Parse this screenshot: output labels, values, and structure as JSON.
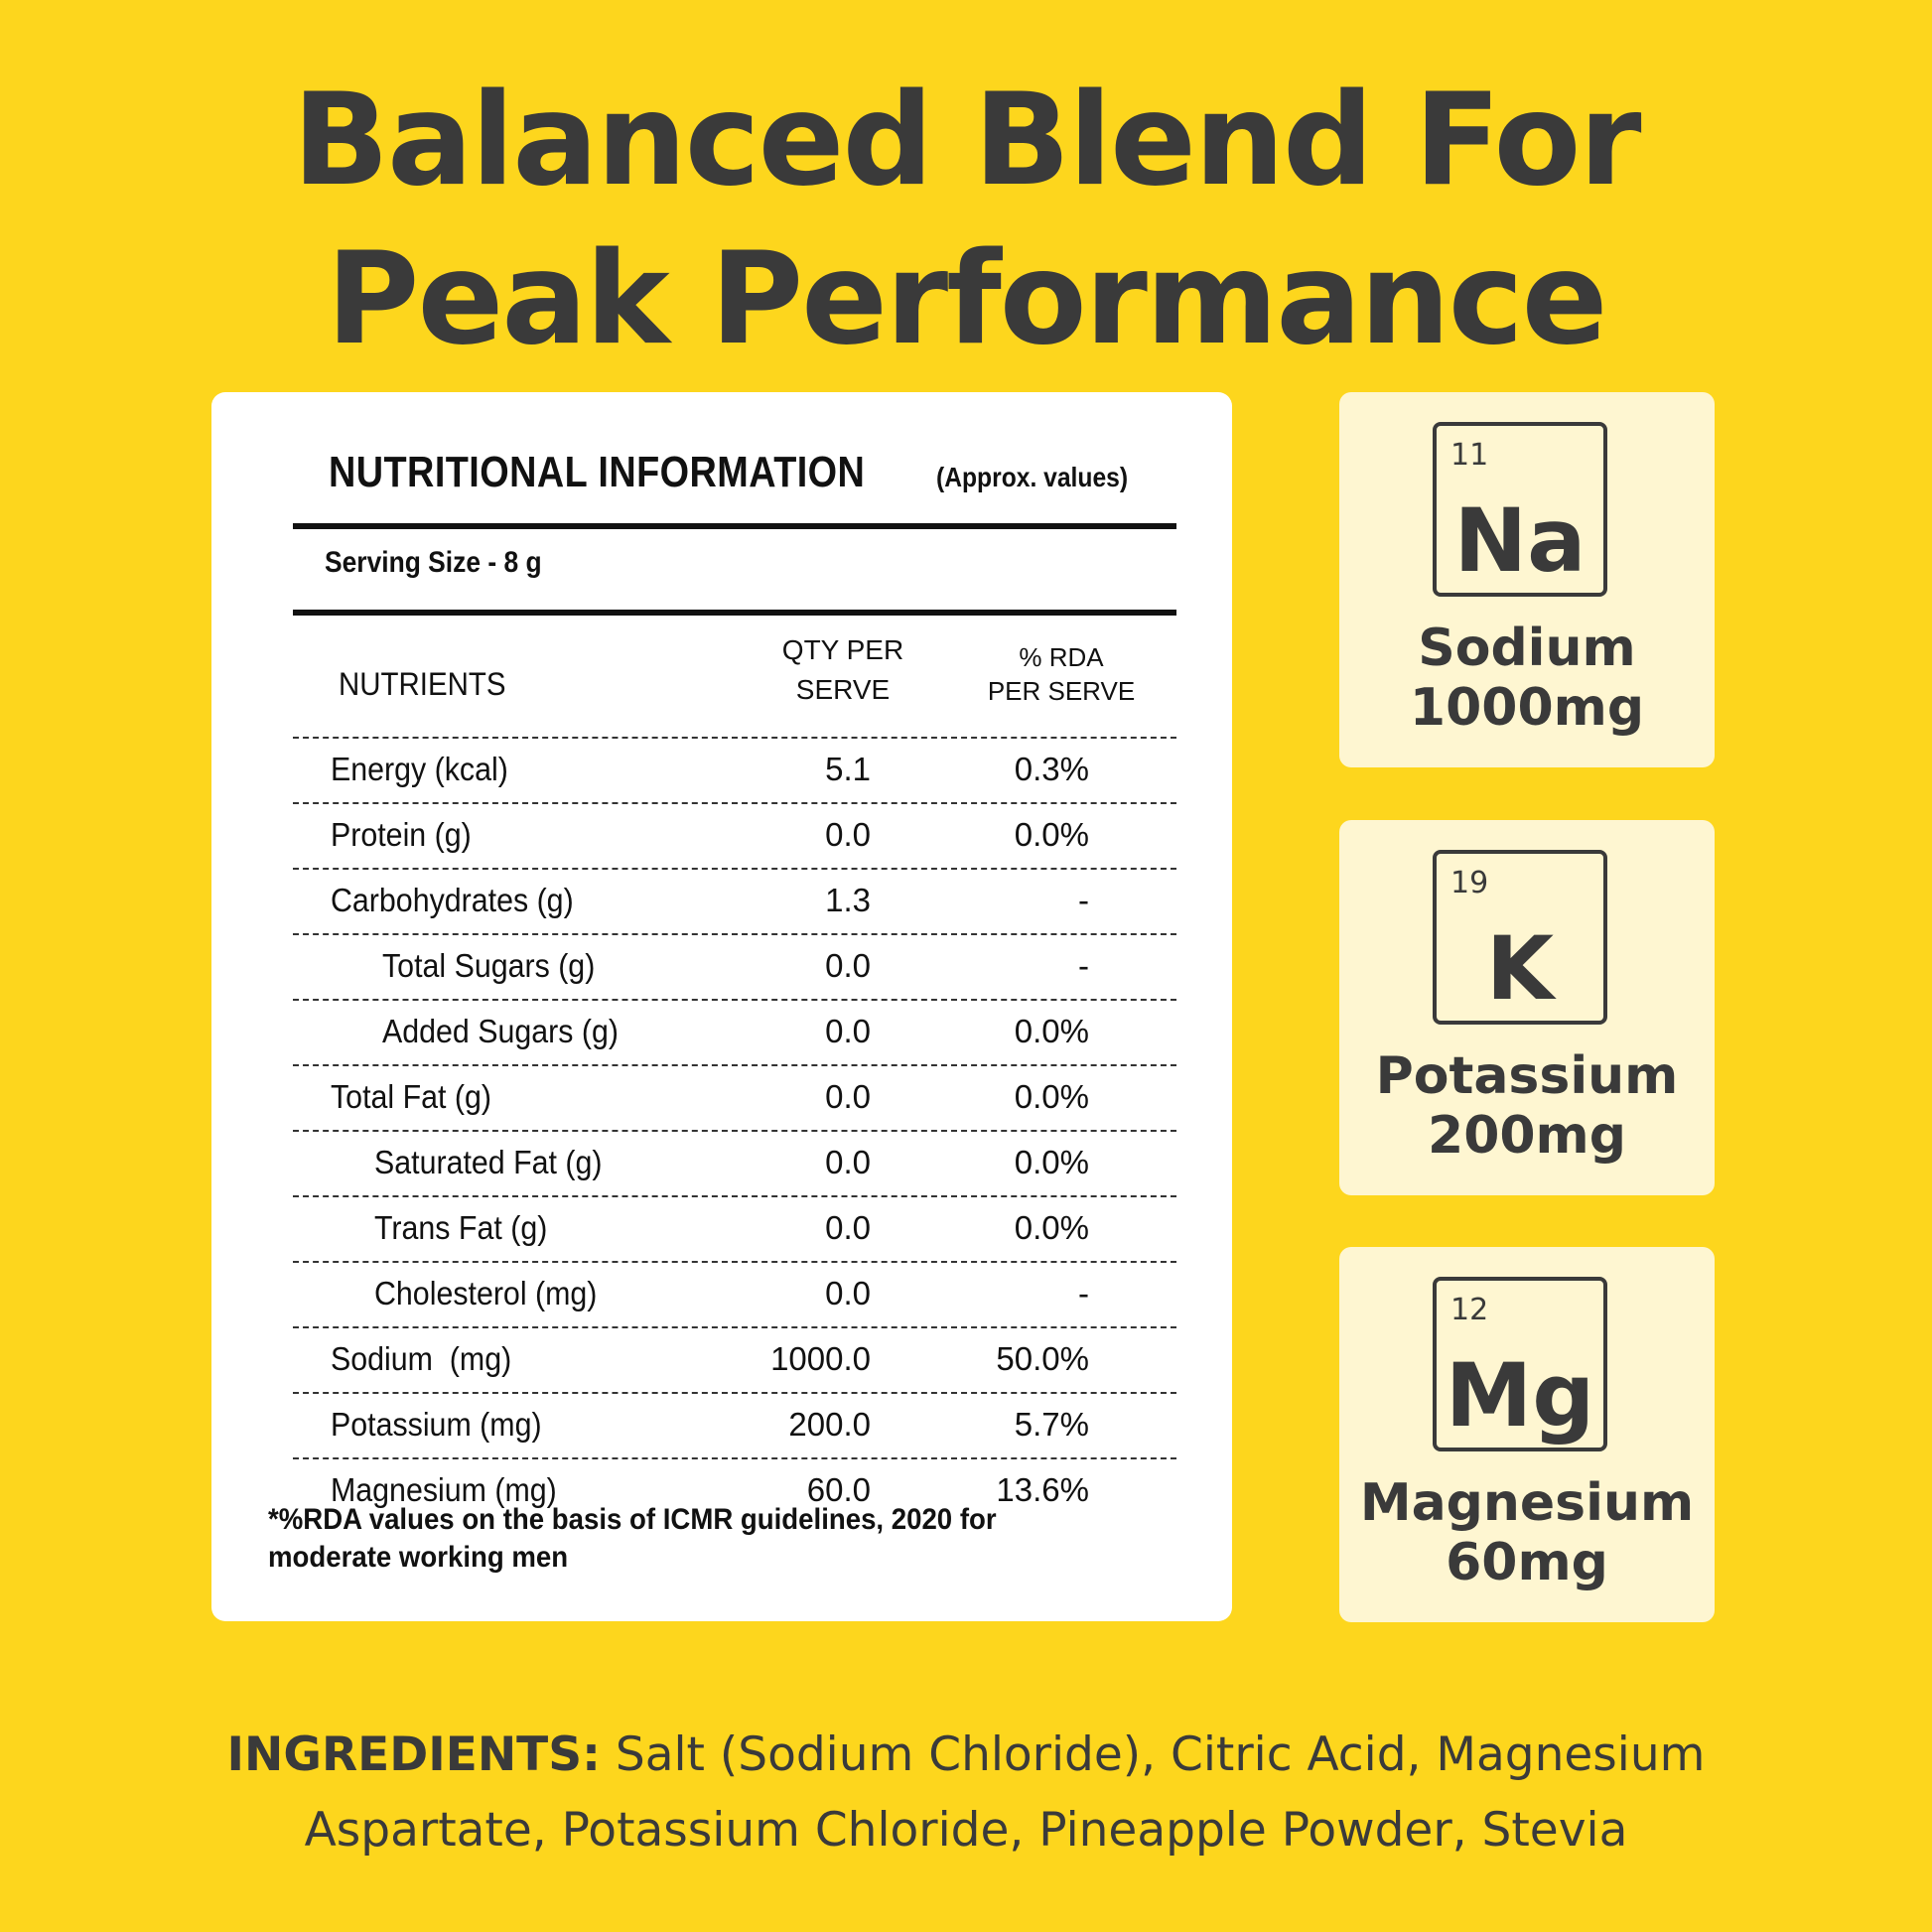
{
  "headline": {
    "line1": "Balanced Blend For",
    "line2": "Peak Performance"
  },
  "nutrition": {
    "title": "NUTRITIONAL INFORMATION",
    "subtitle": "(Approx. values)",
    "serving": "Serving Size - 8 g",
    "headers": {
      "nutrients": "NUTRIENTS",
      "qty_line1": "QTY PER",
      "qty_line2": "SERVE",
      "rda_line1": "% RDA",
      "rda_line2": "PER SERVE"
    },
    "rows": [
      {
        "name": "Energy (kcal)",
        "qty": "5.1",
        "rda": "0.3%"
      },
      {
        "name": "Protein (g)",
        "qty": "0.0",
        "rda": "0.0%"
      },
      {
        "name": "Carbohydrates (g)",
        "qty": "1.3",
        "rda": "-"
      },
      {
        "name": "Total Sugars (g)",
        "qty": "0.0",
        "rda": "-"
      },
      {
        "name": "Added Sugars (g)",
        "qty": "0.0",
        "rda": "0.0%"
      },
      {
        "name": "Total Fat (g)",
        "qty": "0.0",
        "rda": "0.0%"
      },
      {
        "name": "Saturated Fat (g)",
        "qty": "0.0",
        "rda": "0.0%"
      },
      {
        "name": "Trans Fat (g)",
        "qty": "0.0",
        "rda": "0.0%"
      },
      {
        "name": "Cholesterol (mg)",
        "qty": "0.0",
        "rda": "-"
      },
      {
        "name": "Sodium  (mg)",
        "qty": "1000.0",
        "rda": "50.0%"
      },
      {
        "name": "Potassium (mg)",
        "qty": "200.0",
        "rda": "5.7%"
      },
      {
        "name": "Magnesium (mg)",
        "qty": "60.0",
        "rda": "13.6%"
      }
    ],
    "footnote": "*%RDA values on the basis of ICMR guidelines, 2020 for moderate working men"
  },
  "minerals": [
    {
      "number": "11",
      "symbol": "Na",
      "name": "Sodium",
      "amount": "1000mg"
    },
    {
      "number": "19",
      "symbol": "K",
      "name": "Potassium",
      "amount": "200mg"
    },
    {
      "number": "12",
      "symbol": "Mg",
      "name": "Magnesium",
      "amount": "60mg"
    }
  ],
  "ingredients": {
    "label": "INGREDIENTS:",
    "line1": "Salt (Sodium Chloride), Citric Acid, Magnesium",
    "line2": "Aspartate, Potassium Chloride, Pineapple Powder, Stevia"
  },
  "colors": {
    "background": "#FDD61D",
    "card": "#FEF6D1",
    "text": "#3a3a3a"
  }
}
